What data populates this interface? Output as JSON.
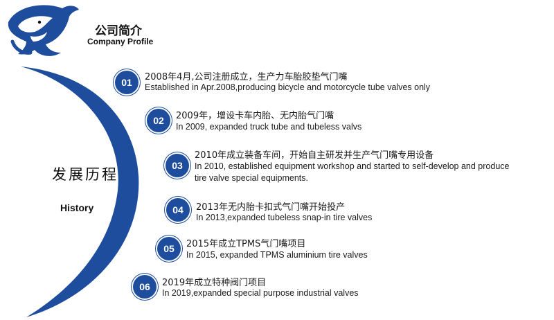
{
  "header": {
    "title_cn": "公司简介",
    "title_en": "Company Profile",
    "logo_icon": "dolphin-logo-icon"
  },
  "sidebar": {
    "title_cn": "发展历程",
    "title_en": "History"
  },
  "colors": {
    "accent": "#1d4d9c",
    "text": "#1a1a1a"
  },
  "timeline": [
    {
      "num": "01",
      "cn": "2008年4月,公司注册成立，生产力车胎胶垫气门嘴",
      "en": "Established in Apr.2008,producing bicycle and motorcycle tube valves only",
      "en2": ""
    },
    {
      "num": "02",
      "cn": "2009年，增设卡车内胎、无内胎气门嘴",
      "en": "In 2009, expanded truck tube and tubeless valvs",
      "en2": ""
    },
    {
      "num": "03",
      "cn": "2010年成立装备车间，开始自主研发并生产气门嘴专用设备",
      "en": "In 2010, established equipment workshop and started to self-develop and produce",
      "en2": "tire valve special equipments."
    },
    {
      "num": "04",
      "cn": "2013年无内胎卡扣式气门嘴开始投产",
      "en": "In 2013,expanded tubeless snap-in tire valves",
      "en2": ""
    },
    {
      "num": "05",
      "cn": "2015年成立TPMS气门嘴项目",
      "en": "In 2015, expanded TPMS aluminium tire valves",
      "en2": ""
    },
    {
      "num": "06",
      "cn": "2019年成立特种阀门项目",
      "en": "In 2019,expanded special purpose industrial valves",
      "en2": ""
    }
  ]
}
